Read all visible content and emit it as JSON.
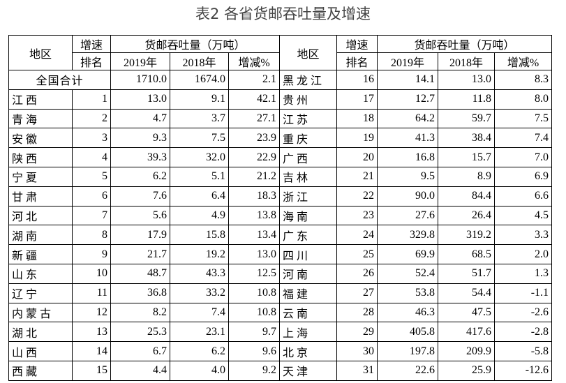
{
  "title": "表2 各省货邮吞吐量及增速",
  "header": {
    "region": "地区",
    "rank_top": "增速",
    "rank_bottom": "排名",
    "volume": "货邮吞吐量（万吨）",
    "y2019": "2019年",
    "y2018": "2018年",
    "change": "增减%"
  },
  "total": {
    "region": "全国合计",
    "v2019": "1710.0",
    "v2018": "1674.0",
    "change": "2.1"
  },
  "left_rows": [
    [
      "江西",
      "1",
      "13.0",
      "9.1",
      "42.1"
    ],
    [
      "青海",
      "2",
      "4.7",
      "3.7",
      "27.1"
    ],
    [
      "安徽",
      "3",
      "9.3",
      "7.5",
      "23.9"
    ],
    [
      "陕西",
      "4",
      "39.3",
      "32.0",
      "22.9"
    ],
    [
      "宁夏",
      "5",
      "6.2",
      "5.1",
      "21.2"
    ],
    [
      "甘肃",
      "6",
      "7.6",
      "6.4",
      "18.3"
    ],
    [
      "河北",
      "7",
      "5.6",
      "4.9",
      "13.8"
    ],
    [
      "湖南",
      "8",
      "17.9",
      "15.8",
      "13.4"
    ],
    [
      "新疆",
      "9",
      "21.7",
      "19.2",
      "13.0"
    ],
    [
      "山东",
      "10",
      "48.7",
      "43.3",
      "12.5"
    ],
    [
      "辽宁",
      "11",
      "36.8",
      "33.2",
      "10.8"
    ],
    [
      "内蒙古",
      "12",
      "8.2",
      "7.4",
      "10.8"
    ],
    [
      "湖北",
      "13",
      "25.3",
      "23.1",
      "9.7"
    ],
    [
      "山西",
      "14",
      "6.7",
      "6.2",
      "9.6"
    ],
    [
      "西藏",
      "15",
      "4.4",
      "4.0",
      "9.2"
    ]
  ],
  "right_rows": [
    [
      "黑龙江",
      "16",
      "14.1",
      "13.0",
      "8.3"
    ],
    [
      "贵州",
      "17",
      "12.7",
      "11.8",
      "8.0"
    ],
    [
      "江苏",
      "18",
      "64.2",
      "59.7",
      "7.5"
    ],
    [
      "重庆",
      "19",
      "41.3",
      "38.4",
      "7.4"
    ],
    [
      "广西",
      "20",
      "16.8",
      "15.7",
      "7.0"
    ],
    [
      "吉林",
      "21",
      "9.5",
      "8.9",
      "6.9"
    ],
    [
      "浙江",
      "22",
      "90.0",
      "84.4",
      "6.6"
    ],
    [
      "海南",
      "23",
      "27.6",
      "26.4",
      "4.5"
    ],
    [
      "广东",
      "24",
      "329.8",
      "319.2",
      "3.3"
    ],
    [
      "四川",
      "25",
      "69.9",
      "68.5",
      "2.0"
    ],
    [
      "河南",
      "26",
      "52.4",
      "51.7",
      "1.3"
    ],
    [
      "福建",
      "27",
      "53.8",
      "54.4",
      "-1.1"
    ],
    [
      "云南",
      "28",
      "46.3",
      "47.5",
      "-2.6"
    ],
    [
      "上海",
      "29",
      "405.8",
      "417.6",
      "-2.8"
    ],
    [
      "北京",
      "30",
      "197.8",
      "209.9",
      "-5.8"
    ],
    [
      "天津",
      "31",
      "22.6",
      "25.9",
      "-12.6"
    ]
  ]
}
